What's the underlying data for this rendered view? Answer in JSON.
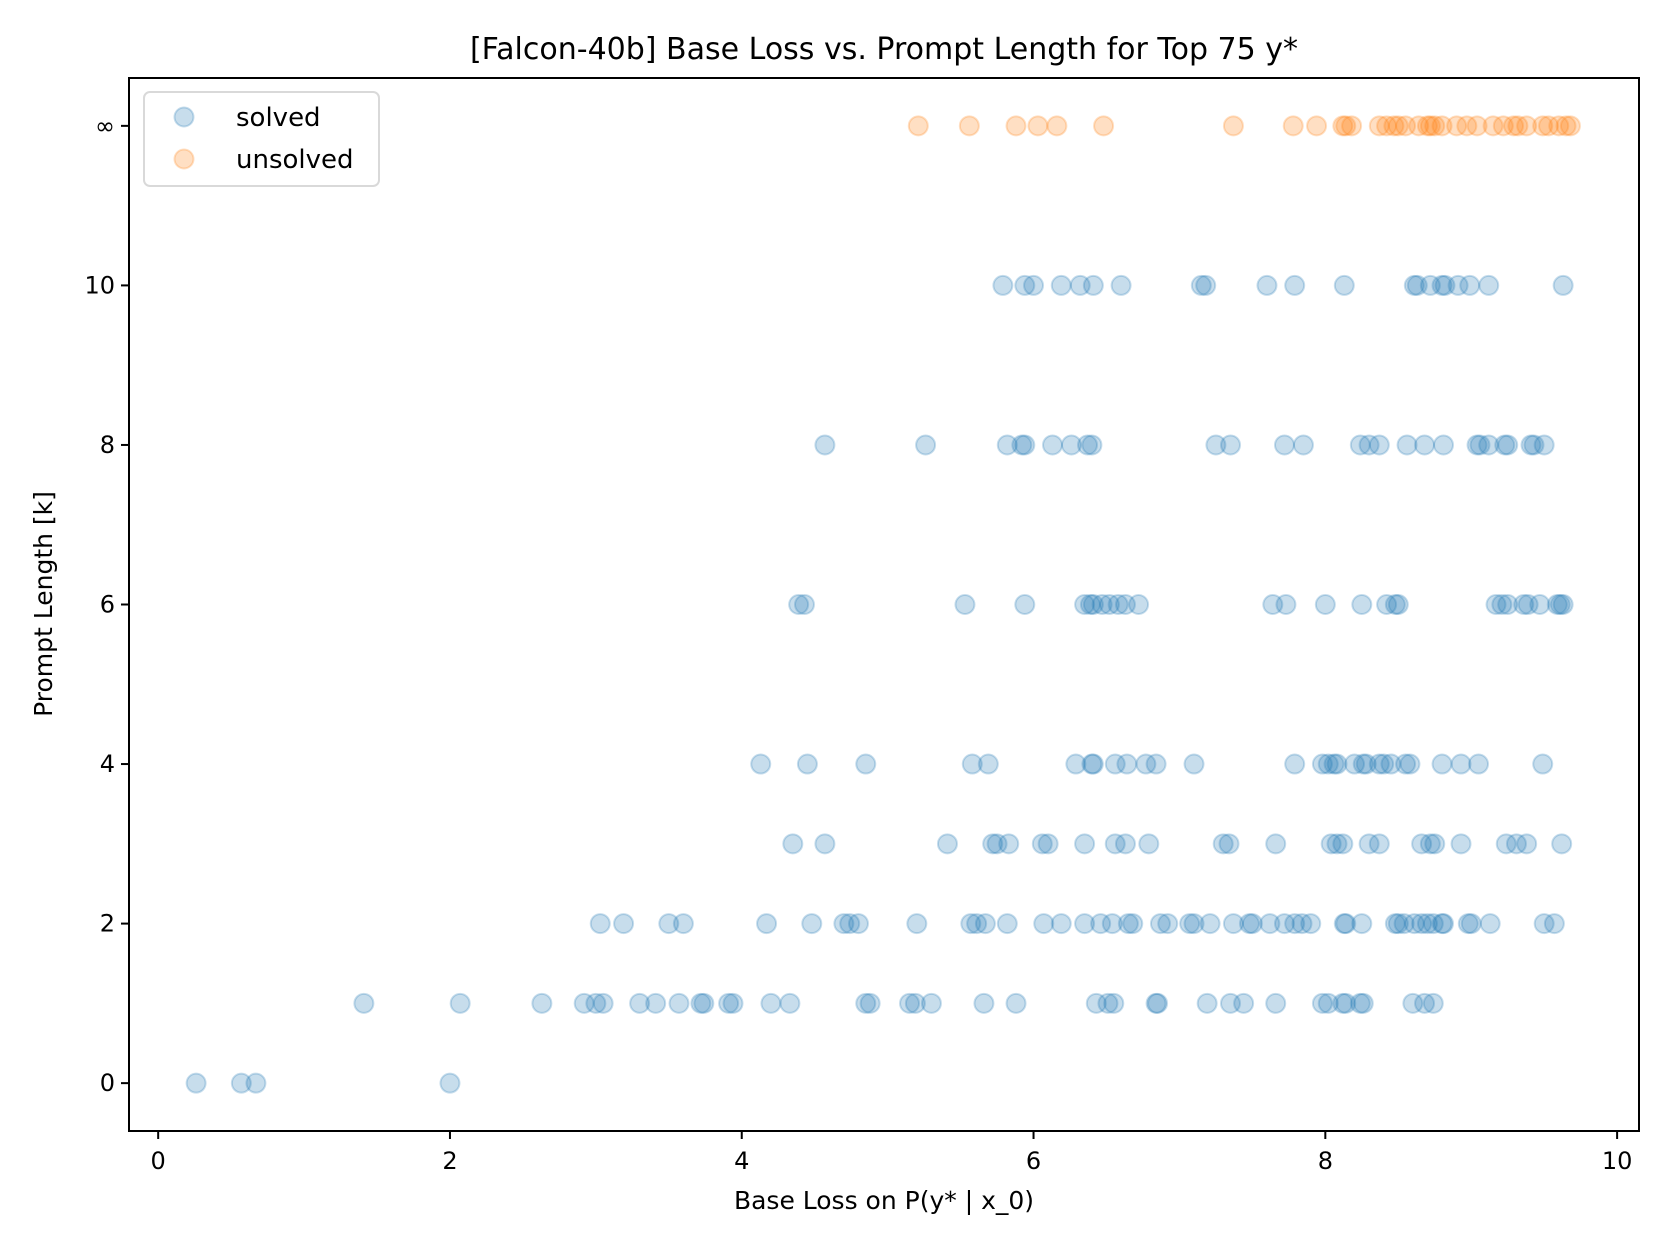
{
  "chart_data": {
    "type": "scatter",
    "title": "[Falcon-40b] Base Loss vs. Prompt Length for Top 75 y*",
    "xlabel": "Base Loss on P(y* | x_0)",
    "ylabel": "Prompt Length [k]",
    "xlim": [
      -0.2,
      10.15
    ],
    "ylim": [
      -0.6,
      12.6
    ],
    "xticks": [
      0,
      2,
      4,
      6,
      8,
      10
    ],
    "xtick_labels": [
      "0",
      "2",
      "4",
      "6",
      "8",
      "10"
    ],
    "yticks": [
      0,
      2,
      4,
      6,
      8,
      10,
      12
    ],
    "ytick_labels": [
      "0",
      "2",
      "4",
      "6",
      "8",
      "10",
      "∞"
    ],
    "legend": {
      "position": "top-left",
      "entries": [
        "solved",
        "unsolved"
      ]
    },
    "grid": false,
    "marker_alpha": 0.25,
    "series": [
      {
        "name": "solved",
        "color": "#1f77b4",
        "points": [
          [
            0.26,
            0
          ],
          [
            0.57,
            0
          ],
          [
            0.67,
            0
          ],
          [
            2.0,
            0
          ],
          [
            1.41,
            1
          ],
          [
            2.07,
            1
          ],
          [
            2.63,
            1
          ],
          [
            2.92,
            1
          ],
          [
            3.0,
            1
          ],
          [
            3.05,
            1
          ],
          [
            3.3,
            1
          ],
          [
            3.41,
            1
          ],
          [
            3.57,
            1
          ],
          [
            3.72,
            1
          ],
          [
            3.74,
            1
          ],
          [
            3.91,
            1
          ],
          [
            3.94,
            1
          ],
          [
            4.2,
            1
          ],
          [
            4.33,
            1
          ],
          [
            4.85,
            1
          ],
          [
            4.88,
            1
          ],
          [
            5.15,
            1
          ],
          [
            5.19,
            1
          ],
          [
            5.3,
            1
          ],
          [
            5.66,
            1
          ],
          [
            5.88,
            1
          ],
          [
            6.43,
            1
          ],
          [
            6.51,
            1
          ],
          [
            6.55,
            1
          ],
          [
            6.84,
            1
          ],
          [
            6.85,
            1
          ],
          [
            7.19,
            1
          ],
          [
            7.35,
            1
          ],
          [
            7.44,
            1
          ],
          [
            7.66,
            1
          ],
          [
            7.98,
            1
          ],
          [
            8.02,
            1
          ],
          [
            8.12,
            1
          ],
          [
            8.14,
            1
          ],
          [
            8.24,
            1
          ],
          [
            8.26,
            1
          ],
          [
            8.6,
            1
          ],
          [
            8.68,
            1
          ],
          [
            8.74,
            1
          ],
          [
            3.03,
            2
          ],
          [
            3.19,
            2
          ],
          [
            3.5,
            2
          ],
          [
            3.6,
            2
          ],
          [
            4.17,
            2
          ],
          [
            4.48,
            2
          ],
          [
            4.7,
            2
          ],
          [
            4.74,
            2
          ],
          [
            4.8,
            2
          ],
          [
            5.2,
            2
          ],
          [
            5.57,
            2
          ],
          [
            5.61,
            2
          ],
          [
            5.67,
            2
          ],
          [
            5.82,
            2
          ],
          [
            6.07,
            2
          ],
          [
            6.19,
            2
          ],
          [
            6.35,
            2
          ],
          [
            6.46,
            2
          ],
          [
            6.54,
            2
          ],
          [
            6.65,
            2
          ],
          [
            6.68,
            2
          ],
          [
            6.87,
            2
          ],
          [
            6.92,
            2
          ],
          [
            7.07,
            2
          ],
          [
            7.1,
            2
          ],
          [
            7.21,
            2
          ],
          [
            7.37,
            2
          ],
          [
            7.48,
            2
          ],
          [
            7.5,
            2
          ],
          [
            7.62,
            2
          ],
          [
            7.72,
            2
          ],
          [
            7.79,
            2
          ],
          [
            7.84,
            2
          ],
          [
            7.9,
            2
          ],
          [
            8.13,
            2
          ],
          [
            8.14,
            2
          ],
          [
            8.25,
            2
          ],
          [
            8.48,
            2
          ],
          [
            8.5,
            2
          ],
          [
            8.54,
            2
          ],
          [
            8.61,
            2
          ],
          [
            8.66,
            2
          ],
          [
            8.7,
            2
          ],
          [
            8.74,
            2
          ],
          [
            8.8,
            2
          ],
          [
            8.81,
            2
          ],
          [
            8.98,
            2
          ],
          [
            9.0,
            2
          ],
          [
            9.13,
            2
          ],
          [
            9.5,
            2
          ],
          [
            9.57,
            2
          ],
          [
            4.35,
            3
          ],
          [
            4.57,
            3
          ],
          [
            5.41,
            3
          ],
          [
            5.72,
            3
          ],
          [
            5.75,
            3
          ],
          [
            5.83,
            3
          ],
          [
            6.06,
            3
          ],
          [
            6.1,
            3
          ],
          [
            6.35,
            3
          ],
          [
            6.56,
            3
          ],
          [
            6.63,
            3
          ],
          [
            6.79,
            3
          ],
          [
            7.3,
            3
          ],
          [
            7.34,
            3
          ],
          [
            7.66,
            3
          ],
          [
            8.04,
            3
          ],
          [
            8.08,
            3
          ],
          [
            8.12,
            3
          ],
          [
            8.3,
            3
          ],
          [
            8.37,
            3
          ],
          [
            8.66,
            3
          ],
          [
            8.72,
            3
          ],
          [
            8.75,
            3
          ],
          [
            8.93,
            3
          ],
          [
            9.24,
            3
          ],
          [
            9.31,
            3
          ],
          [
            9.38,
            3
          ],
          [
            9.62,
            3
          ],
          [
            4.13,
            4
          ],
          [
            4.45,
            4
          ],
          [
            4.85,
            4
          ],
          [
            5.58,
            4
          ],
          [
            5.69,
            4
          ],
          [
            6.29,
            4
          ],
          [
            6.4,
            4
          ],
          [
            6.41,
            4
          ],
          [
            6.56,
            4
          ],
          [
            6.64,
            4
          ],
          [
            6.77,
            4
          ],
          [
            6.84,
            4
          ],
          [
            7.1,
            4
          ],
          [
            7.79,
            4
          ],
          [
            7.98,
            4
          ],
          [
            8.02,
            4
          ],
          [
            8.06,
            4
          ],
          [
            8.08,
            4
          ],
          [
            8.2,
            4
          ],
          [
            8.26,
            4
          ],
          [
            8.28,
            4
          ],
          [
            8.37,
            4
          ],
          [
            8.4,
            4
          ],
          [
            8.45,
            4
          ],
          [
            8.55,
            4
          ],
          [
            8.58,
            4
          ],
          [
            8.8,
            4
          ],
          [
            8.93,
            4
          ],
          [
            9.05,
            4
          ],
          [
            9.49,
            4
          ],
          [
            4.39,
            6
          ],
          [
            4.43,
            6
          ],
          [
            5.53,
            6
          ],
          [
            5.94,
            6
          ],
          [
            6.35,
            6
          ],
          [
            6.39,
            6
          ],
          [
            6.41,
            6
          ],
          [
            6.47,
            6
          ],
          [
            6.52,
            6
          ],
          [
            6.58,
            6
          ],
          [
            6.63,
            6
          ],
          [
            6.72,
            6
          ],
          [
            7.64,
            6
          ],
          [
            7.73,
            6
          ],
          [
            8.0,
            6
          ],
          [
            8.25,
            6
          ],
          [
            8.42,
            6
          ],
          [
            8.48,
            6
          ],
          [
            8.5,
            6
          ],
          [
            9.17,
            6
          ],
          [
            9.21,
            6
          ],
          [
            9.25,
            6
          ],
          [
            9.36,
            6
          ],
          [
            9.39,
            6
          ],
          [
            9.47,
            6
          ],
          [
            9.59,
            6
          ],
          [
            9.61,
            6
          ],
          [
            9.63,
            6
          ],
          [
            4.57,
            8
          ],
          [
            5.26,
            8
          ],
          [
            5.82,
            8
          ],
          [
            5.92,
            8
          ],
          [
            5.94,
            8
          ],
          [
            6.13,
            8
          ],
          [
            6.26,
            8
          ],
          [
            6.37,
            8
          ],
          [
            6.4,
            8
          ],
          [
            7.25,
            8
          ],
          [
            7.35,
            8
          ],
          [
            7.72,
            8
          ],
          [
            7.85,
            8
          ],
          [
            8.24,
            8
          ],
          [
            8.3,
            8
          ],
          [
            8.37,
            8
          ],
          [
            8.56,
            8
          ],
          [
            8.68,
            8
          ],
          [
            8.81,
            8
          ],
          [
            9.04,
            8
          ],
          [
            9.06,
            8
          ],
          [
            9.12,
            8
          ],
          [
            9.23,
            8
          ],
          [
            9.25,
            8
          ],
          [
            9.41,
            8
          ],
          [
            9.43,
            8
          ],
          [
            9.5,
            8
          ],
          [
            5.79,
            10
          ],
          [
            5.94,
            10
          ],
          [
            6.0,
            10
          ],
          [
            6.19,
            10
          ],
          [
            6.32,
            10
          ],
          [
            6.41,
            10
          ],
          [
            6.6,
            10
          ],
          [
            7.15,
            10
          ],
          [
            7.18,
            10
          ],
          [
            7.6,
            10
          ],
          [
            7.79,
            10
          ],
          [
            8.13,
            10
          ],
          [
            8.61,
            10
          ],
          [
            8.63,
            10
          ],
          [
            8.72,
            10
          ],
          [
            8.8,
            10
          ],
          [
            8.82,
            10
          ],
          [
            8.91,
            10
          ],
          [
            8.99,
            10
          ],
          [
            9.12,
            10
          ],
          [
            9.63,
            10
          ]
        ]
      },
      {
        "name": "unsolved",
        "color": "#ff7f0e",
        "points": [
          [
            5.21,
            12
          ],
          [
            5.56,
            12
          ],
          [
            5.88,
            12
          ],
          [
            6.03,
            12
          ],
          [
            6.16,
            12
          ],
          [
            6.48,
            12
          ],
          [
            7.37,
            12
          ],
          [
            7.78,
            12
          ],
          [
            7.94,
            12
          ],
          [
            8.12,
            12
          ],
          [
            8.14,
            12
          ],
          [
            8.18,
            12
          ],
          [
            8.37,
            12
          ],
          [
            8.42,
            12
          ],
          [
            8.47,
            12
          ],
          [
            8.5,
            12
          ],
          [
            8.55,
            12
          ],
          [
            8.64,
            12
          ],
          [
            8.7,
            12
          ],
          [
            8.72,
            12
          ],
          [
            8.75,
            12
          ],
          [
            8.8,
            12
          ],
          [
            8.9,
            12
          ],
          [
            8.97,
            12
          ],
          [
            9.04,
            12
          ],
          [
            9.15,
            12
          ],
          [
            9.22,
            12
          ],
          [
            9.29,
            12
          ],
          [
            9.32,
            12
          ],
          [
            9.38,
            12
          ],
          [
            9.49,
            12
          ],
          [
            9.53,
            12
          ],
          [
            9.6,
            12
          ],
          [
            9.65,
            12
          ],
          [
            9.68,
            12
          ]
        ]
      }
    ]
  }
}
